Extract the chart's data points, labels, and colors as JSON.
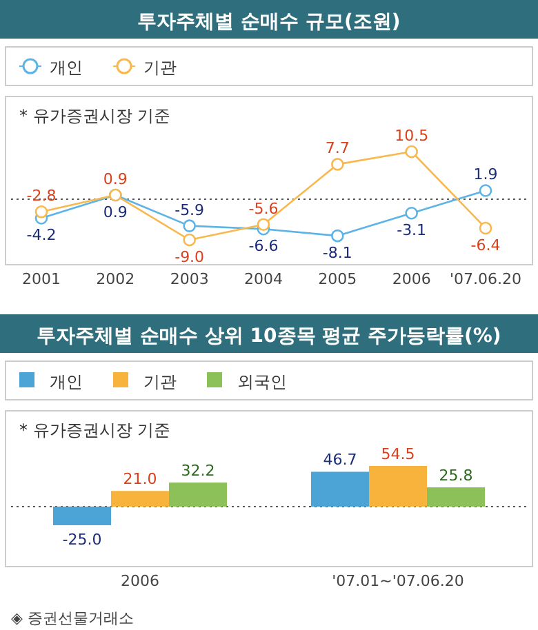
{
  "chart_data": [
    {
      "type": "line",
      "title": "투자주체별 순매수 규모(조원)",
      "annotations": [
        "* 유가증권시장 기준"
      ],
      "categories": [
        "2001",
        "2002",
        "2003",
        "2004",
        "2005",
        "2006",
        "'07.06.20"
      ],
      "series": [
        {
          "name": "개인",
          "color": "#5bb4e5",
          "values": [
            -4.2,
            0.9,
            -5.9,
            -6.6,
            -8.1,
            -3.1,
            1.9
          ],
          "value_labels": [
            "-4.2",
            "0.9",
            "-5.9",
            "-6.6",
            "-8.1",
            "-3.1",
            "1.9"
          ]
        },
        {
          "name": "기관",
          "color": "#f8b84e",
          "values": [
            -2.8,
            0.9,
            -9.0,
            -5.6,
            7.7,
            10.5,
            -6.4
          ],
          "value_labels": [
            "-2.8",
            "0.9",
            "-9.0",
            "-5.6",
            "7.7",
            "10.5",
            "-6.4"
          ]
        }
      ],
      "marker": "circle",
      "legend": "top left",
      "tick_labels": "x",
      "ref_lines": [
        {
          "axis": "y",
          "value": 0,
          "line_style": "dotted",
          "color": "#555555"
        }
      ]
    },
    {
      "type": "bar",
      "title": "투자주체별 순매수 상위 10종목 평균 주가등락률(%)",
      "annotations": [
        "* 유가증권시장 기준",
        "◈ 증권선물거래소"
      ],
      "categories": [
        "2006",
        "'07.01~'07.06.20"
      ],
      "series": [
        {
          "name": "개인",
          "color": "#4ba3d6",
          "values": [
            -25.0,
            46.7
          ],
          "value_labels": [
            "-25.0",
            "46.7"
          ]
        },
        {
          "name": "기관",
          "color": "#f8b33c",
          "values": [
            21.0,
            54.5
          ],
          "value_labels": [
            "21.0",
            "54.5"
          ]
        },
        {
          "name": "외국인",
          "color": "#8cc15a",
          "values": [
            32.2,
            25.8
          ],
          "value_labels": [
            "32.2",
            "25.8"
          ]
        }
      ],
      "legend": "top left",
      "tick_labels": "x",
      "ref_lines": [
        {
          "axis": "y",
          "value": 0,
          "line_style": "dotted",
          "color": "#555555"
        }
      ]
    }
  ]
}
